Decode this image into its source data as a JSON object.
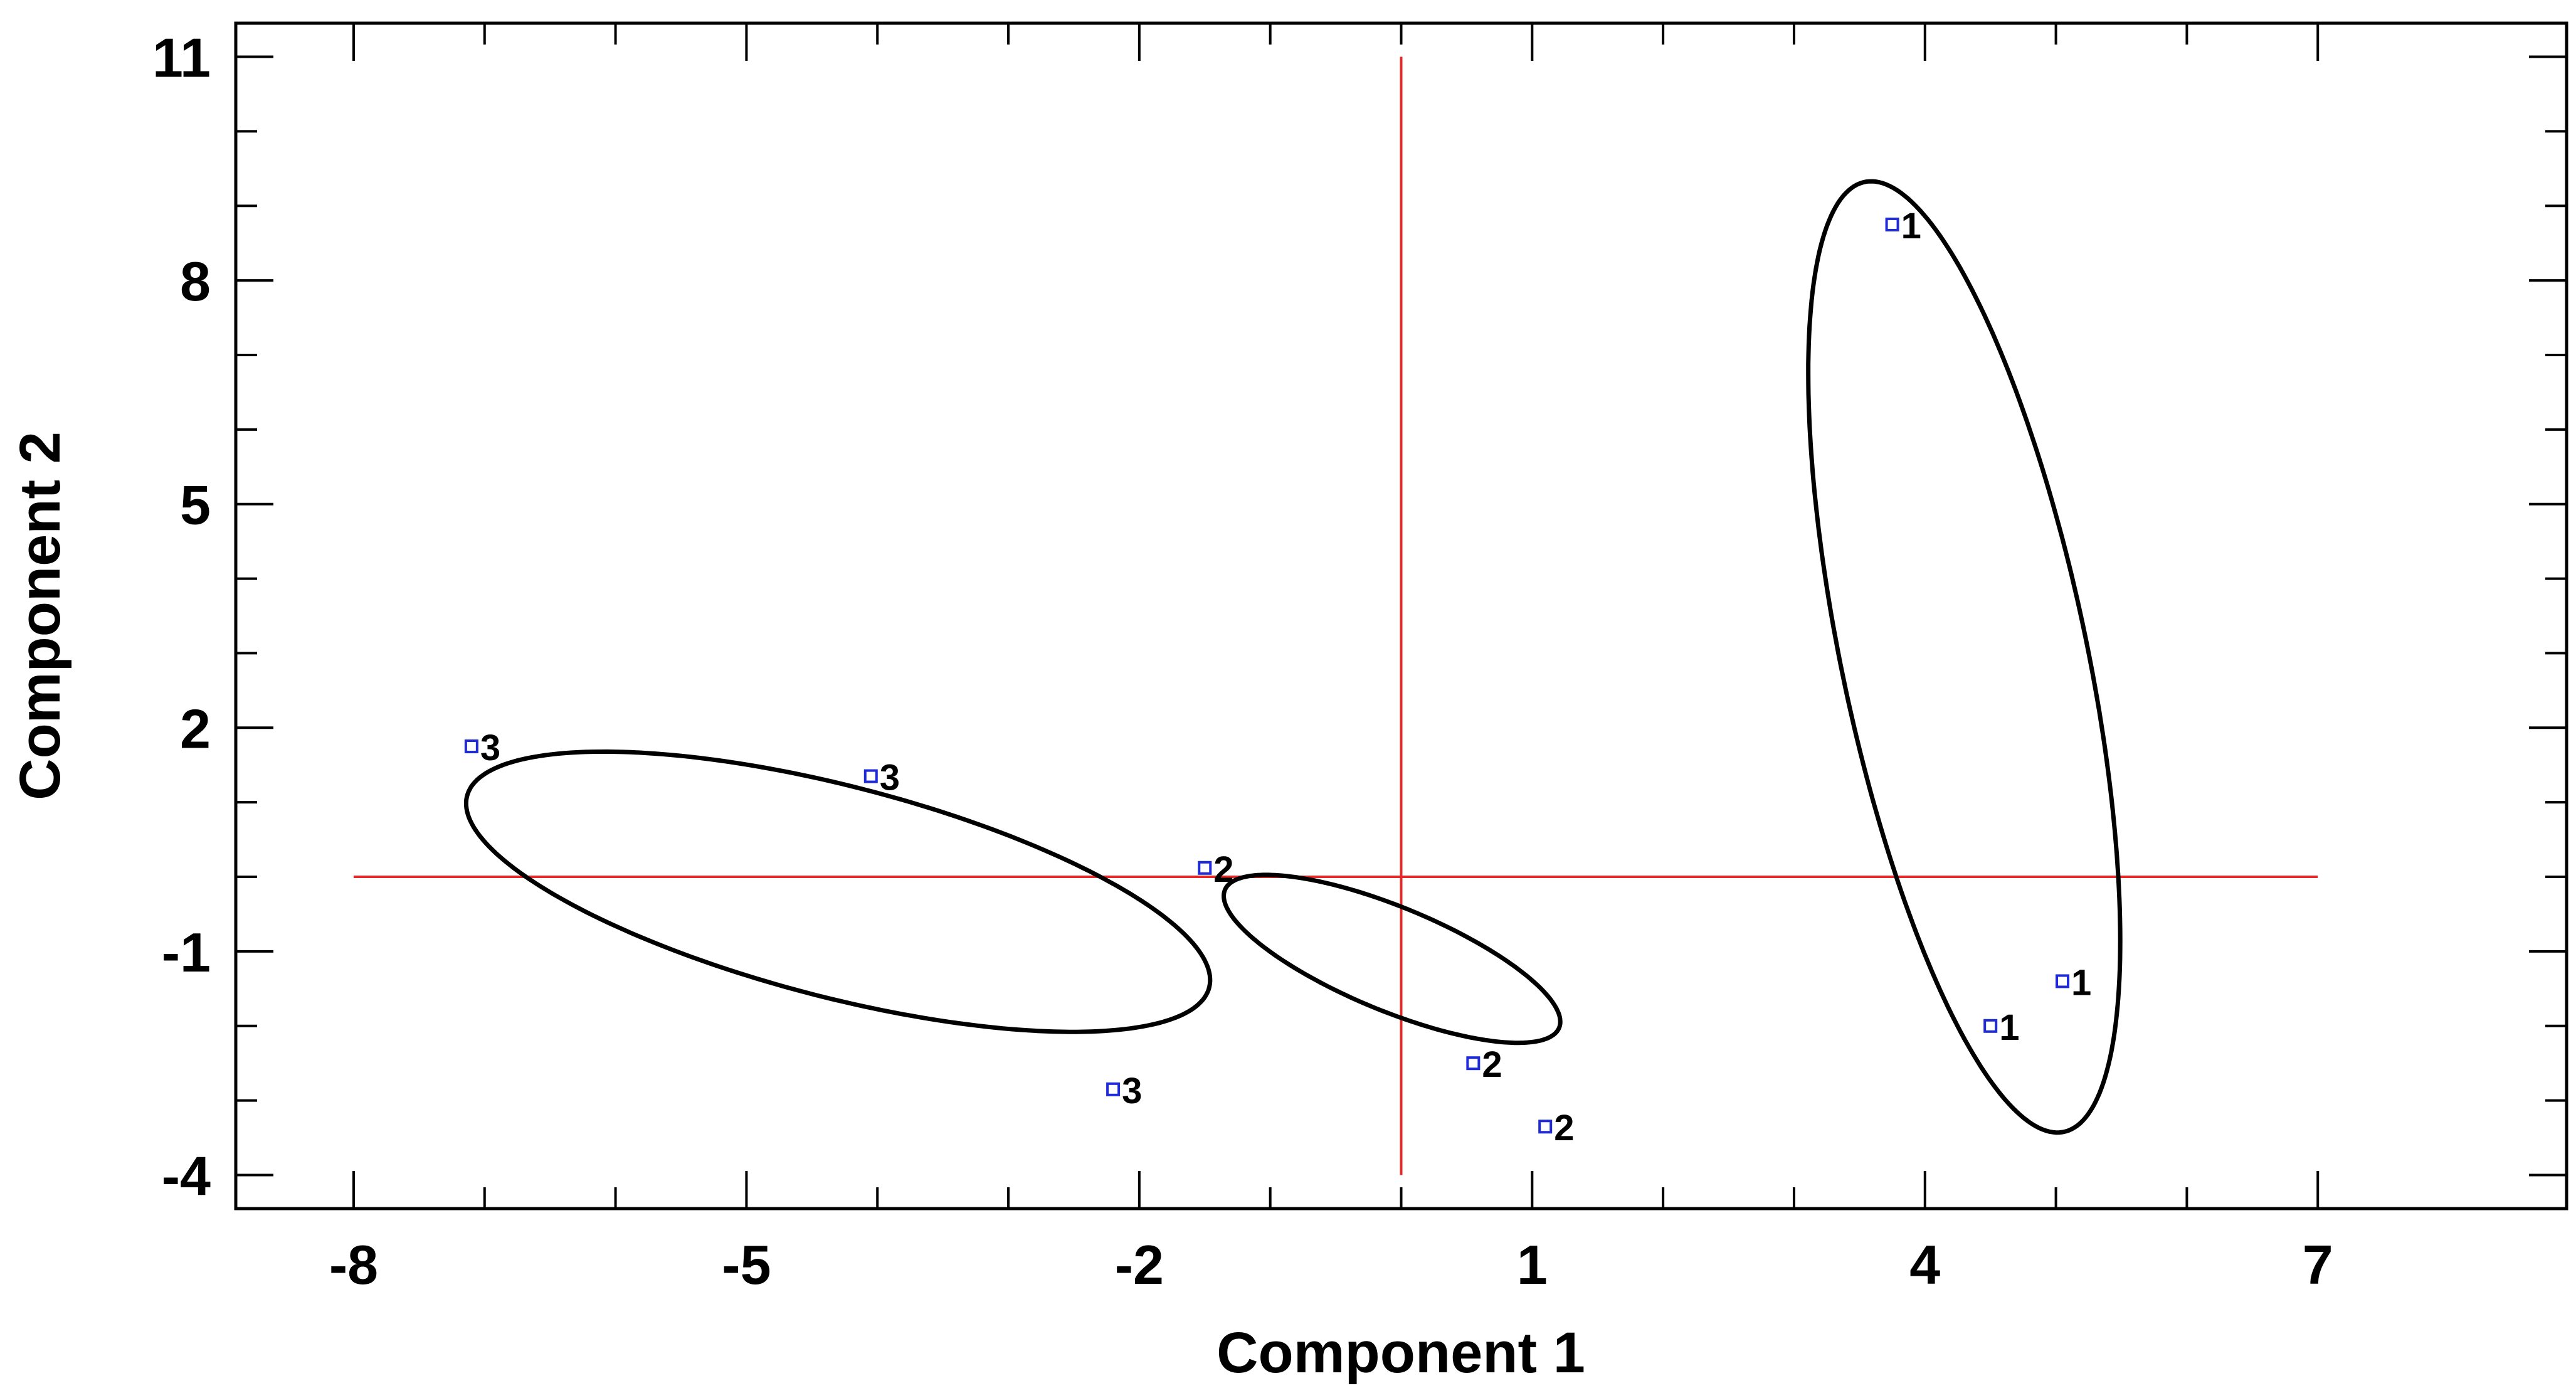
{
  "chart_data": {
    "type": "scatter",
    "xlabel": "Component 1",
    "ylabel": "Component 2",
    "xlim": [
      -8.9,
      8.9
    ],
    "ylim": [
      -4.45,
      11.45
    ],
    "x_ticks": [
      -8,
      -5,
      -2,
      1,
      4,
      7
    ],
    "y_ticks": [
      -4,
      -1,
      2,
      5,
      8,
      11
    ],
    "x_minor_step": 1,
    "y_minor_step": 1,
    "grid": false,
    "reference_lines": {
      "x": 0,
      "y": 0,
      "color": "#e32a2a"
    },
    "marker": {
      "shape": "square",
      "color": "#1f2bd6"
    },
    "points": [
      {
        "x": 3.75,
        "y": 8.75,
        "label": "1"
      },
      {
        "x": 4.5,
        "y": -2.0,
        "label": "1"
      },
      {
        "x": 5.05,
        "y": -1.4,
        "label": "1"
      },
      {
        "x": -1.5,
        "y": 0.12,
        "label": "2"
      },
      {
        "x": 0.55,
        "y": -2.5,
        "label": "2"
      },
      {
        "x": 1.1,
        "y": -3.35,
        "label": "2"
      },
      {
        "x": -7.1,
        "y": 1.75,
        "label": "3"
      },
      {
        "x": -4.05,
        "y": 1.35,
        "label": "3"
      },
      {
        "x": -2.2,
        "y": -2.85,
        "label": "3"
      }
    ],
    "ellipses": [
      {
        "group": "1",
        "cx": 4.3,
        "cy": 2.95,
        "rx": 0.95,
        "ry": 6.42,
        "angle_deg": 6.5
      },
      {
        "group": "2",
        "cx": -0.07,
        "cy": -1.1,
        "rx": 1.6,
        "ry": 0.6,
        "angle_deg": -40
      },
      {
        "group": "3",
        "cx": -4.3,
        "cy": -0.2,
        "rx": 3.14,
        "ry": 1.32,
        "angle_deg": -28
      }
    ]
  }
}
